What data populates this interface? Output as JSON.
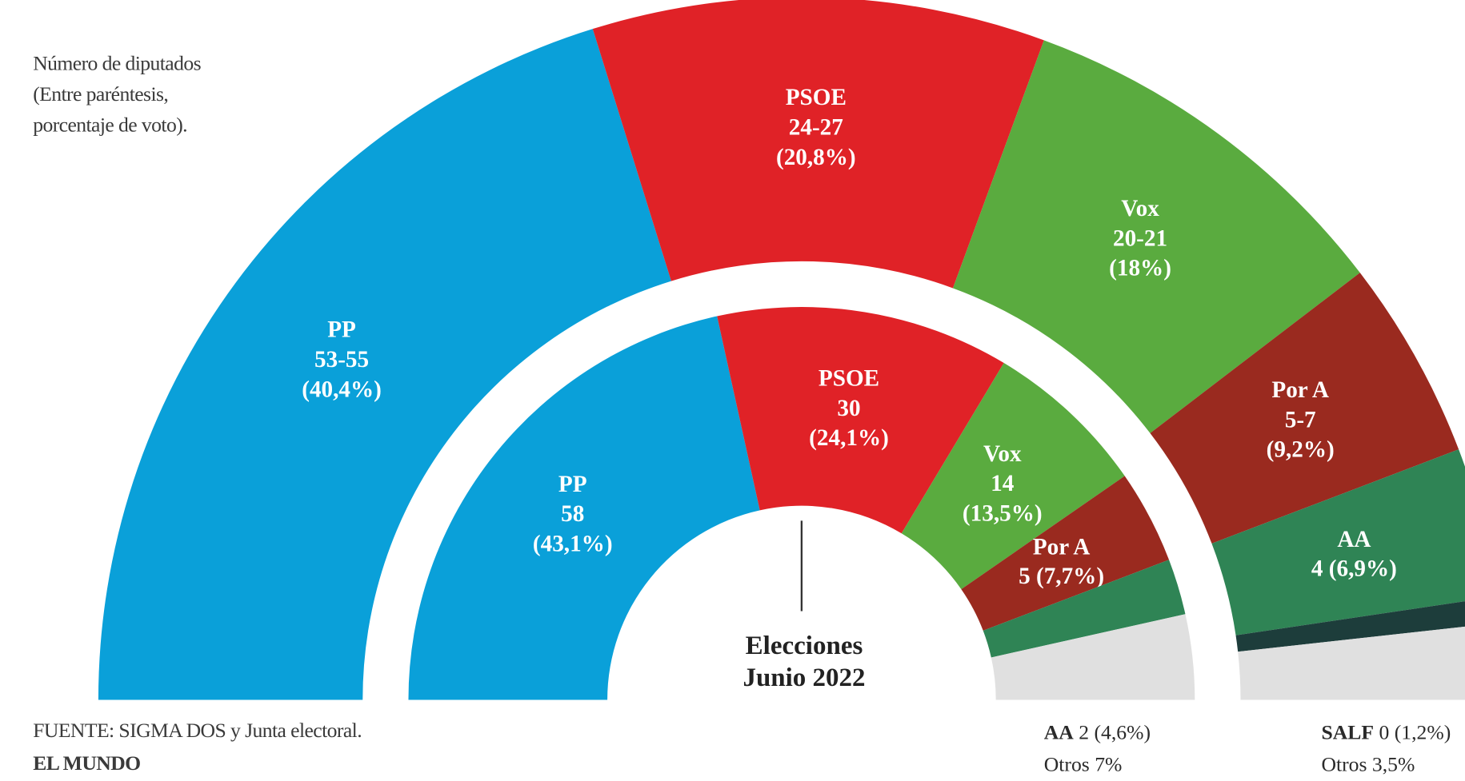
{
  "chart_data": {
    "type": "hemicycle",
    "subtitle_lines": [
      "Número de diputados",
      "(Entre paréntesis,",
      "porcentaje de voto)."
    ],
    "source": "FUENTE: SIGMA DOS y Junta electoral.",
    "publisher": "EL MUNDO",
    "rings": [
      {
        "categories": [
          "PP",
          "PSOE",
          "Vox",
          "Por A",
          "AA",
          "SALF",
          "Otros"
        ],
        "seats": [
          "53-55",
          "24-27",
          "20-21",
          "5-7",
          "4",
          "0",
          null
        ],
        "values": [
          40.4,
          20.8,
          18,
          9.2,
          6.9,
          1.2,
          3.5
        ],
        "value_labels": [
          "(40,4%)",
          "(20,8%)",
          "(18%)",
          "(9,2%)",
          "(6,9%)",
          "(1,2%)",
          "3,5%"
        ],
        "colors": [
          "#0aa0d9",
          "#e02227",
          "#5aab3f",
          "#9a2a1f",
          "#2f8455",
          "#1d3d3b",
          "#e0e0e0"
        ]
      },
      {
        "name": "Elecciones Junio 2022",
        "categories": [
          "PP",
          "PSOE",
          "Vox",
          "Por A",
          "AA",
          "Otros"
        ],
        "seats": [
          "58",
          "30",
          "14",
          "5",
          "2",
          null
        ],
        "values": [
          43.1,
          24.1,
          13.5,
          7.7,
          4.6,
          7
        ],
        "value_labels": [
          "(43,1%)",
          "(24,1%)",
          "(13,5%)",
          "(7,7%)",
          "(4,6%)",
          "7%"
        ],
        "colors": [
          "#0aa0d9",
          "#e02227",
          "#5aab3f",
          "#9a2a1f",
          "#2f8455",
          "#e0e0e0"
        ]
      }
    ]
  }
}
